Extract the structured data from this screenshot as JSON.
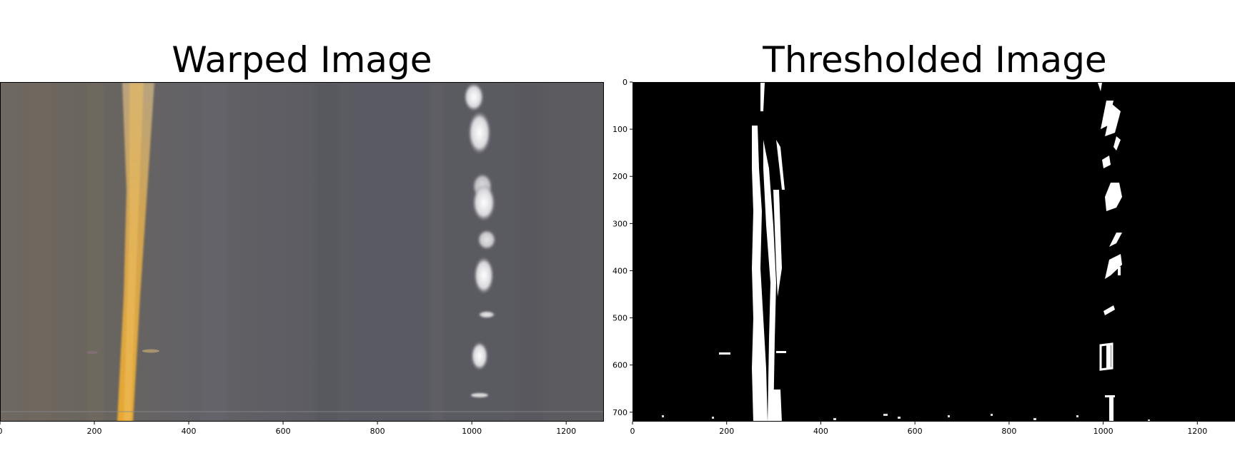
{
  "panels": [
    {
      "title": "Warped Image",
      "x_ticks": [
        "0",
        "200",
        "400",
        "600",
        "800",
        "1000",
        "1200"
      ],
      "x_tick_values": [
        0,
        200,
        400,
        600,
        800,
        1000,
        1200
      ],
      "y_ticks": []
    },
    {
      "title": "Thresholded Image",
      "x_ticks": [
        "0",
        "200",
        "400",
        "600",
        "800",
        "1000",
        "1200"
      ],
      "x_tick_values": [
        0,
        200,
        400,
        600,
        800,
        1000,
        1200
      ],
      "y_ticks": [
        "0",
        "100",
        "200",
        "300",
        "400",
        "500",
        "600",
        "700"
      ],
      "y_tick_values": [
        0,
        100,
        200,
        300,
        400,
        500,
        600,
        700
      ]
    }
  ],
  "image_extent": {
    "width": 1280,
    "height": 720
  },
  "colors": {
    "road": "#5c5b63",
    "yellow_line": "#e0a93a",
    "white_line": "#f2f2f2",
    "binary_bg": "#000000",
    "binary_fg": "#ffffff"
  }
}
